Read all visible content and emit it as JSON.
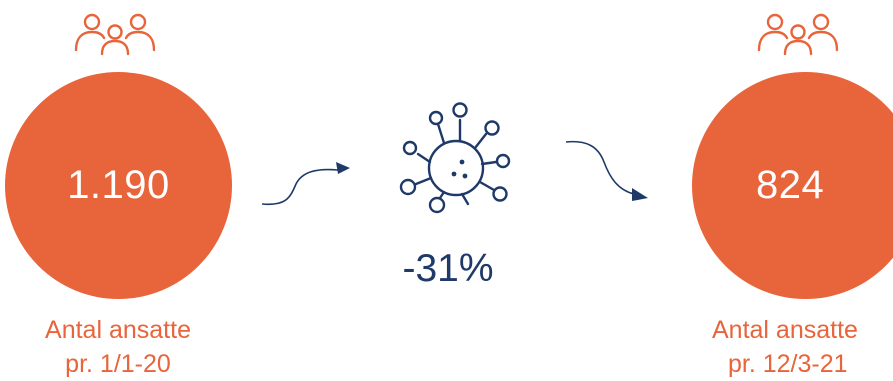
{
  "colors": {
    "accent": "#E8643A",
    "navy": "#1F3A68",
    "background": "#FFFFFF"
  },
  "left": {
    "icon": "people-group-icon",
    "value": "1.190",
    "caption_line1": "Antal ansatte",
    "caption_line2": "pr. 1/1-20"
  },
  "center": {
    "icon": "virus-icon",
    "change": "-31%"
  },
  "right": {
    "icon": "people-group-icon",
    "value": "824",
    "caption_line1": "Antal ansatte",
    "caption_line2": "pr. 12/3-21"
  }
}
